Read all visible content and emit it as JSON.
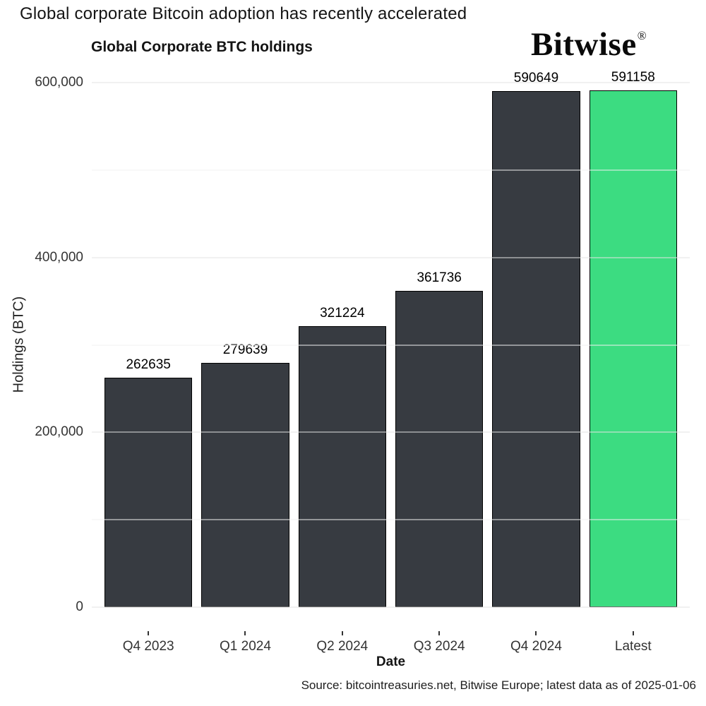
{
  "title": "Global corporate Bitcoin adoption has recently accelerated",
  "logo": {
    "text": "Bitwise",
    "registered_mark": "®"
  },
  "source": "Source: bitcointreasuries.net, Bitwise Europe; latest data as of 2025-01-06",
  "chart_data": {
    "type": "bar",
    "title": "Global Corporate BTC holdings",
    "categories": [
      "Q4 2023",
      "Q1 2024",
      "Q2 2024",
      "Q3 2024",
      "Q4 2024",
      "Latest"
    ],
    "values": [
      262635,
      279639,
      321224,
      361736,
      590649,
      591158
    ],
    "value_labels": [
      "262635",
      "279639",
      "321224",
      "361736",
      "590649",
      "591158"
    ],
    "bar_colors": [
      "#373b41",
      "#373b41",
      "#373b41",
      "#373b41",
      "#373b41",
      "#3cdc81"
    ],
    "xlabel": "Date",
    "ylabel": "Holdings (BTC)",
    "ylim": [
      0,
      600000
    ],
    "yticks": [
      0,
      200000,
      400000,
      600000
    ],
    "ytick_labels": [
      "0",
      "200,000",
      "400,000",
      "600,000"
    ],
    "minor_gridlines": [
      100000,
      300000,
      500000
    ],
    "grid": "horizontal",
    "legend_position": "none",
    "bar_border_color": "#000000"
  },
  "colors": {
    "bar_default": "#373b41",
    "bar_highlight": "#3cdc81",
    "bar_border": "#000000",
    "grid_major": "#e3e3e3",
    "grid_minor": "#f1f1f1",
    "text_primary": "#141414",
    "text_axis": "#333333"
  }
}
